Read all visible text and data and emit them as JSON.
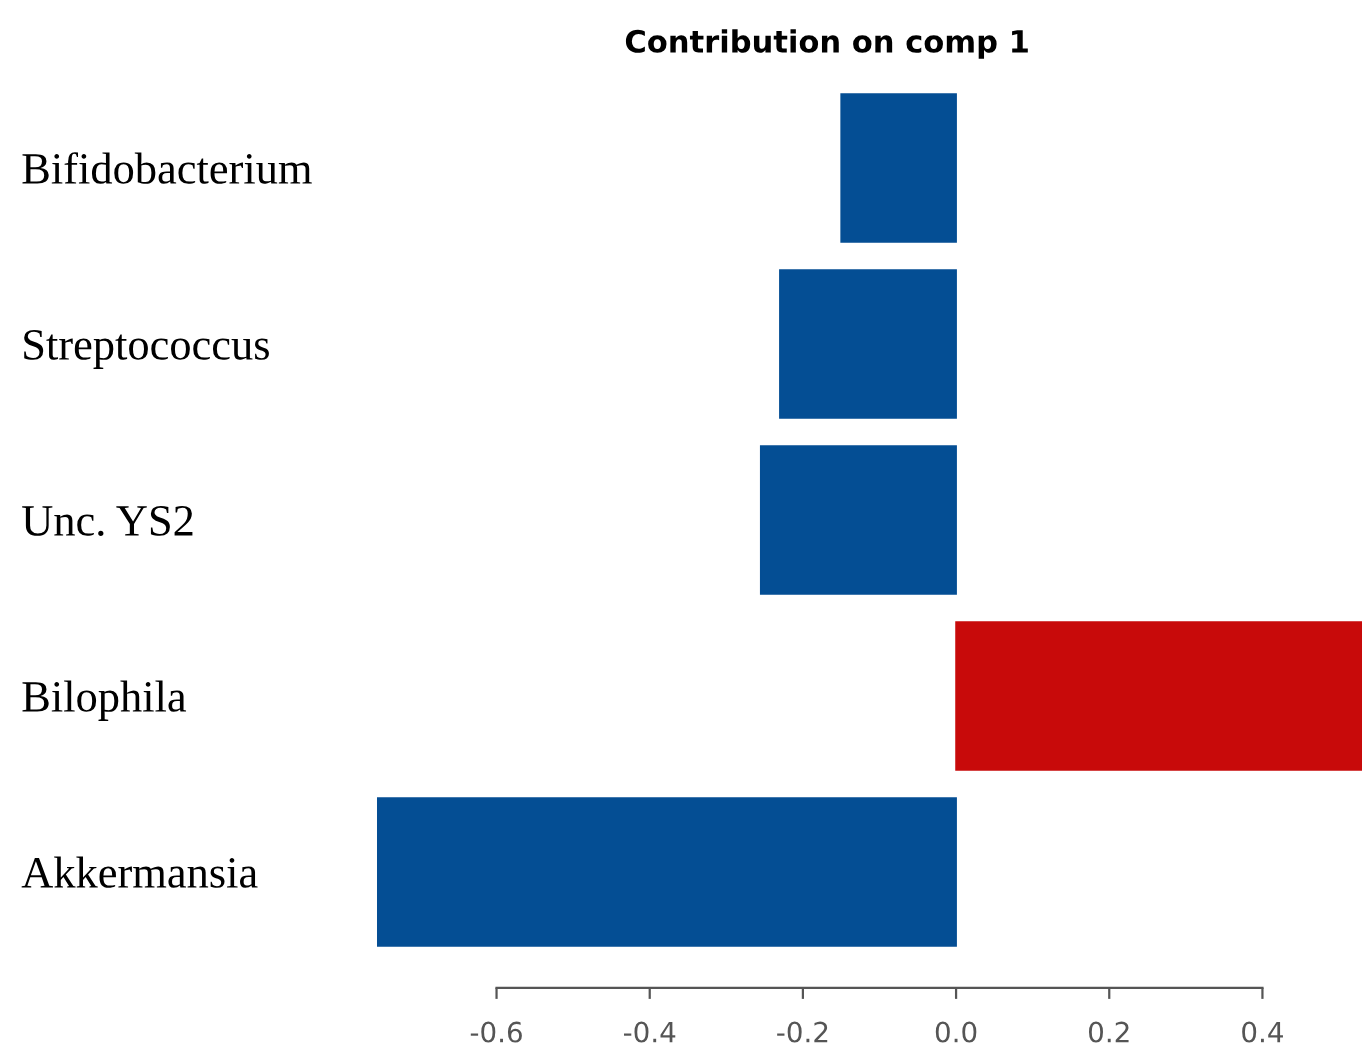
{
  "chart_data": {
    "type": "bar",
    "orientation": "horizontal",
    "title": "Contribution on comp 1",
    "categories": [
      "Bifidobacterium",
      "Streptococcus",
      "Unc. YS2",
      "Bilophila",
      "Akkermansia"
    ],
    "values": [
      -0.15,
      -0.23,
      -0.255,
      0.53,
      -0.755
    ],
    "colors": [
      "#044e94",
      "#044e94",
      "#044e94",
      "#c80a0a",
      "#044e94"
    ],
    "xlim": [
      -0.76,
      0.53
    ],
    "xticks": [
      -0.6,
      -0.4,
      -0.2,
      {
        "value": 0,
        "label": "0.0"
      },
      0.2,
      0.4
    ],
    "grid": false,
    "legend": false
  }
}
